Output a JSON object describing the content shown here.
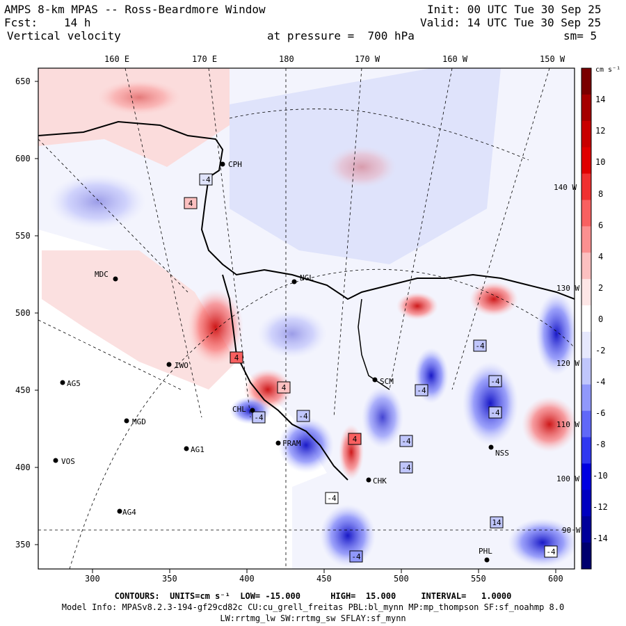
{
  "header": {
    "title": "AMPS 8-km MPAS -- Ross-Beardmore Window",
    "init": "Init: 00 UTC Tue 30 Sep 25",
    "fcst_label": "Fcst:",
    "fcst_value": "14 h",
    "valid": "Valid: 14 UTC Tue 30 Sep 25",
    "field": "Vertical velocity",
    "level": "at pressure =  700 hPa",
    "smoothing": "sm= 5"
  },
  "map": {
    "lon_labels": [
      "160 E",
      "170 E",
      "180",
      "170 W",
      "160 W",
      "150 W"
    ],
    "y_ticks": [
      "650",
      "600",
      "550",
      "500",
      "450",
      "400",
      "350"
    ],
    "x_ticks": [
      "300",
      "350",
      "400",
      "450",
      "500",
      "550",
      "600"
    ],
    "right_lon_labels": [
      "140 W",
      "130 W",
      "120 W",
      "110 W",
      "100 W",
      "90 W"
    ],
    "stations": [
      {
        "id": "CPH"
      },
      {
        "id": "MDC"
      },
      {
        "id": "NGL"
      },
      {
        "id": "IWO"
      },
      {
        "id": "AG5"
      },
      {
        "id": "MGD"
      },
      {
        "id": "AG1"
      },
      {
        "id": "VOS"
      },
      {
        "id": "AG4"
      },
      {
        "id": "SCM"
      },
      {
        "id": "CHL"
      },
      {
        "id": "PHL"
      },
      {
        "id": "NSS"
      },
      {
        "id": "FRAM"
      },
      {
        "id": "CHK"
      }
    ],
    "box_labels": [
      "-4",
      "4",
      "-4",
      "4",
      "-4",
      "4",
      "-4",
      "-4",
      "-4",
      "-4",
      "-4",
      "-4",
      "-4",
      "14",
      "-4",
      "4",
      "-4"
    ],
    "colors": {
      "positive": "#cc0000",
      "negative": "#0000cc",
      "background": "#ffffff"
    }
  },
  "colorbar": {
    "units": "cm s⁻¹",
    "labels": [
      "14",
      "12",
      "10",
      "8",
      "6",
      "4",
      "2",
      "0",
      "-2",
      "-4",
      "-6",
      "-8",
      "-10",
      "-12",
      "-14"
    ],
    "colors": [
      "#7a0000",
      "#a50000",
      "#c80000",
      "#e00000",
      "#f03030",
      "#f86060",
      "#fb9090",
      "#fcc0c0",
      "#fde6e6",
      "#ffffff",
      "#e6e8fd",
      "#c0c6fc",
      "#9098fb",
      "#6068f8",
      "#3038f0",
      "#0000e0",
      "#0000c0",
      "#00009a",
      "#00006e"
    ]
  },
  "footer": {
    "contours_line": "CONTOURS:  UNITS=cm s⁻¹  LOW= -15.000      HIGH=  15.000     INTERVAL=   1.0000",
    "model_info": "Model Info: MPASv8.2.3-194-gf29cd82c CU:cu_grell_freitas PBL:bl_mynn MP:mp_thompson SF:sf_noahmp 8.0",
    "model_info_2": "LW:rrtmg_lw SW:rrtmg_sw SFLAY:sf_mynn"
  }
}
